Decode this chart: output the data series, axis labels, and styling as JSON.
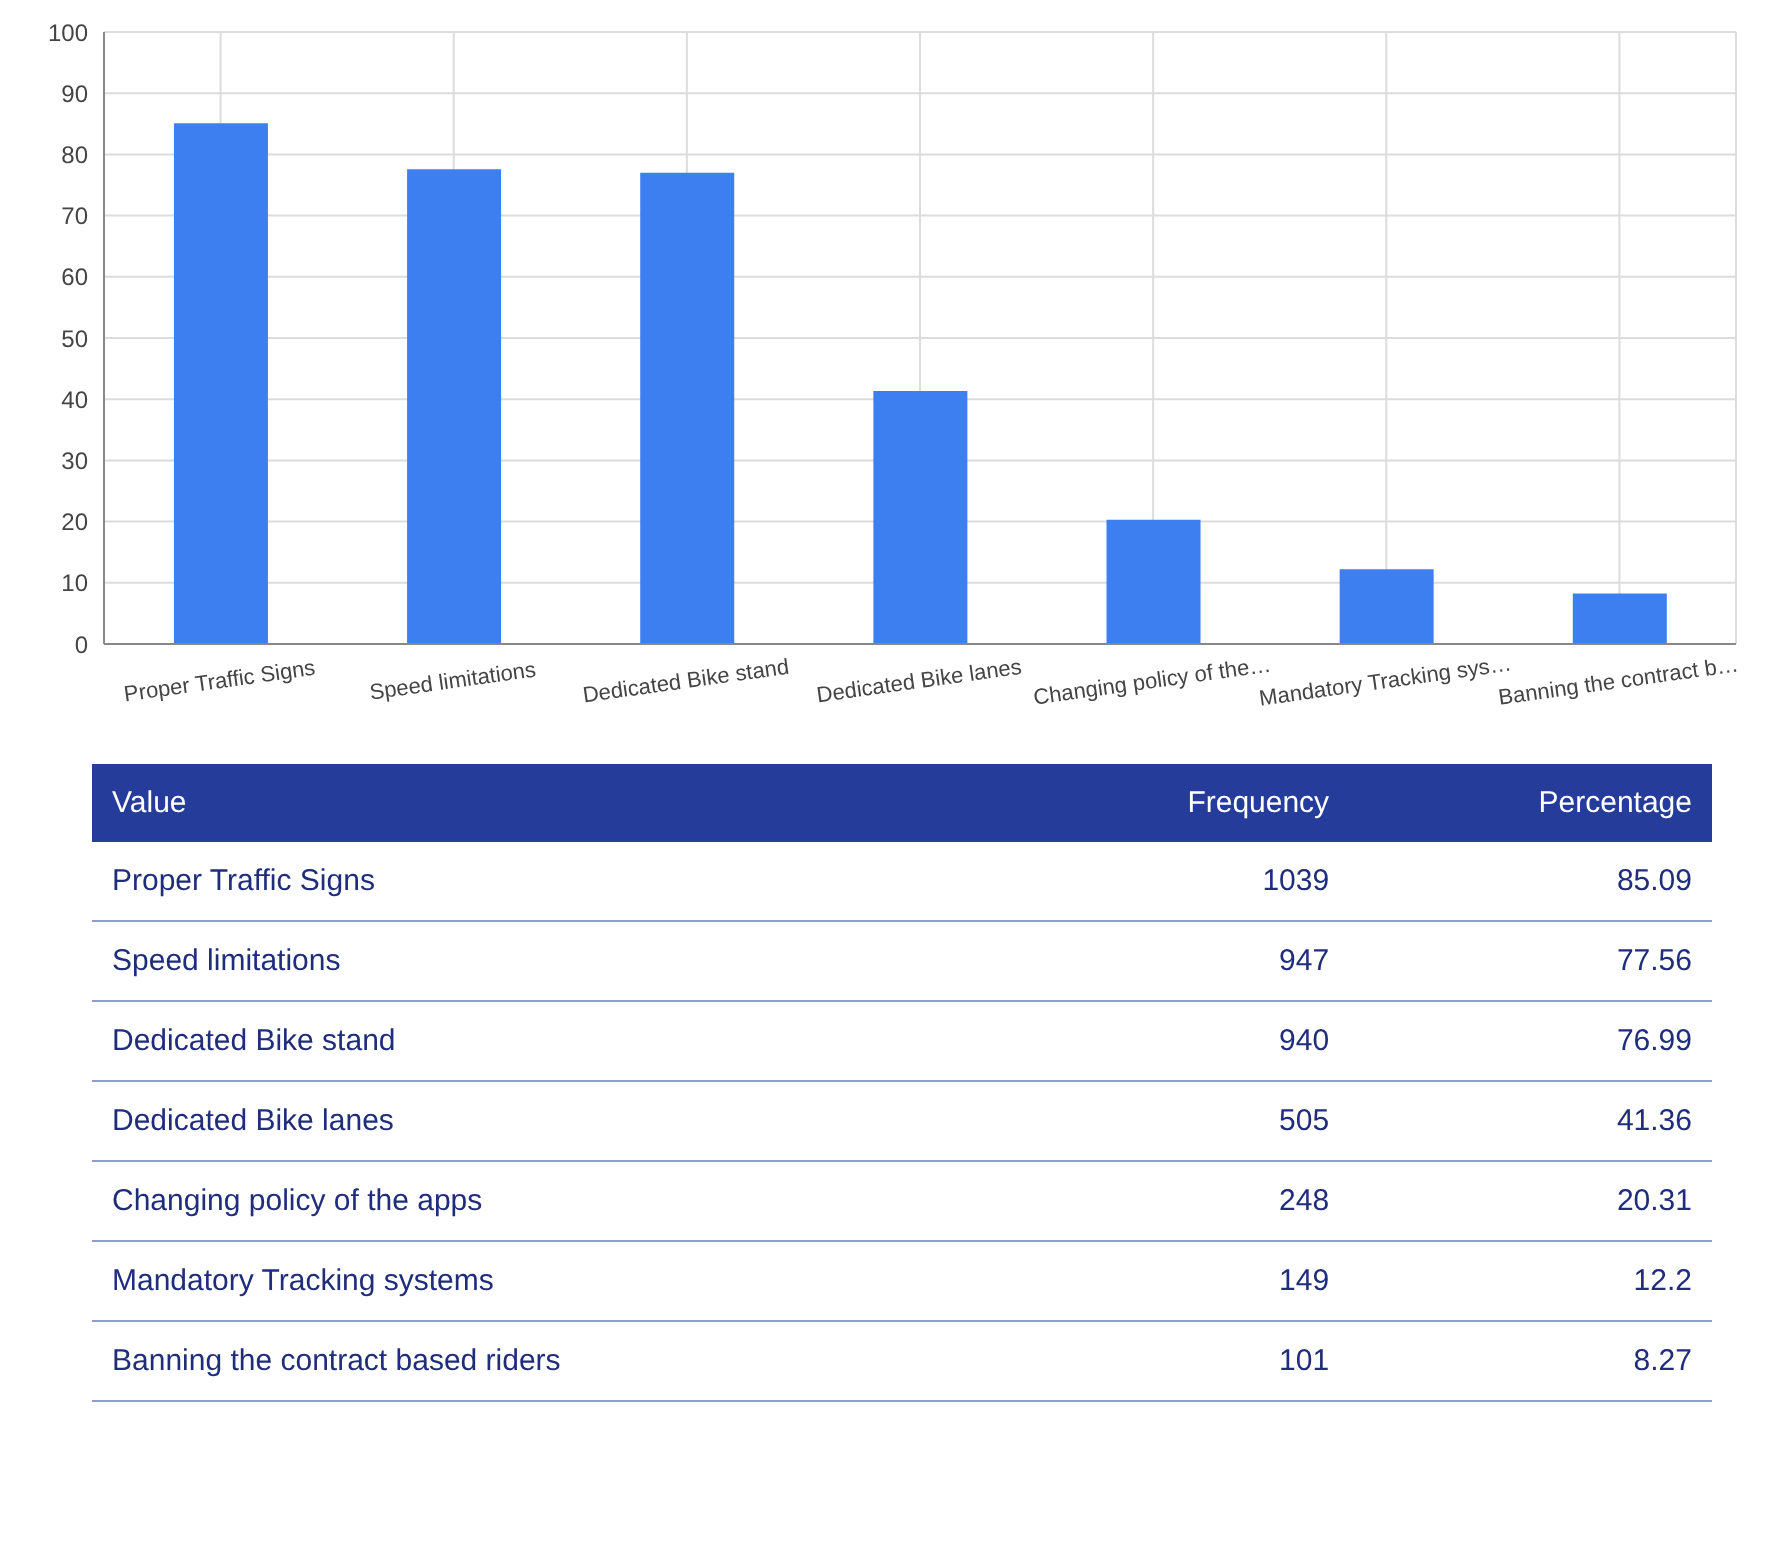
{
  "chart_data": [
    {
      "type": "bar",
      "categories": [
        "Proper Traffic Signs",
        "Speed limitations",
        "Dedicated Bike stand",
        "Dedicated Bike lanes",
        "Changing policy of the…",
        "Mandatory Tracking sys…",
        "Banning the contract b…"
      ],
      "values": [
        85.09,
        77.56,
        76.99,
        41.36,
        20.31,
        12.2,
        8.27
      ],
      "color": "#3d7ff0",
      "ylim": [
        0,
        100
      ],
      "yticks": [
        0,
        10,
        20,
        30,
        40,
        50,
        60,
        70,
        80,
        90,
        100
      ],
      "grid": true
    },
    {
      "type": "other",
      "xlabel": "Value",
      "categories": [
        "Proper Traffic Signs",
        "Speed limitations",
        "Dedicated Bike stand",
        "Dedicated Bike lanes",
        "Changing policy of the apps",
        "Mandatory Tracking systems",
        "Banning the contract based riders"
      ],
      "series": [
        {
          "name": "Frequency",
          "values": [
            1039,
            947,
            940,
            505,
            248,
            149,
            101
          ]
        },
        {
          "name": "Percentage",
          "values": [
            85.09,
            77.56,
            76.99,
            41.36,
            20.31,
            12.2,
            8.27
          ]
        }
      ],
      "data_labels": true
    }
  ]
}
